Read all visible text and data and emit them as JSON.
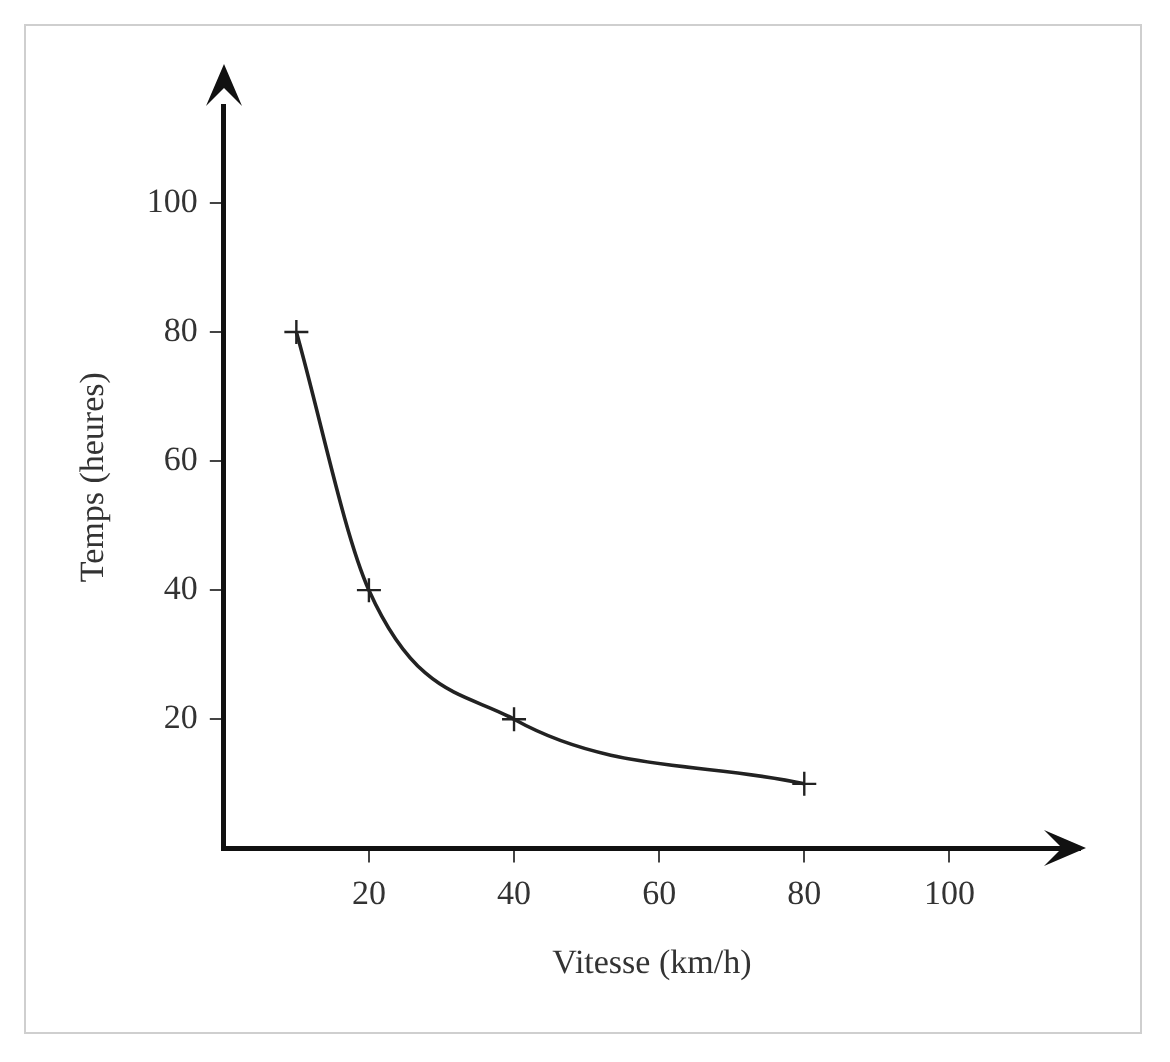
{
  "chart_data": {
    "type": "line",
    "xlabel": "Vitesse (km/h)",
    "ylabel": "Temps (heures)",
    "x": [
      10,
      20,
      40,
      80
    ],
    "series": [
      {
        "color": "#222222",
        "values": [
          80,
          40,
          20,
          10
        ]
      }
    ],
    "xlim": [
      0,
      118
    ],
    "ylim": [
      0,
      115
    ],
    "xticks": [
      20,
      40,
      60,
      80,
      100
    ],
    "yticks": [
      20,
      40,
      60,
      80,
      100
    ],
    "grid": false,
    "legend": false,
    "marker": "cross",
    "line_style": "solid"
  }
}
